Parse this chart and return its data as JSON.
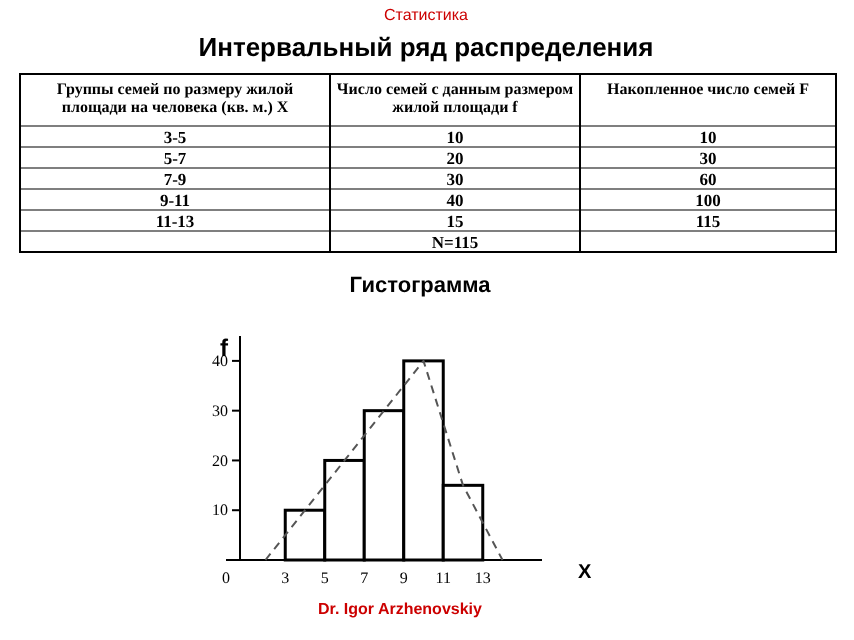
{
  "chart_data": [
    {
      "type": "other",
      "subtitle": "Статистика",
      "title": "Интервальный ряд распределения",
      "categories": [
        "Группы семей по размеру жилой площади на человека (кв. м.)  X",
        "Число семей с данным размером жилой площади  f",
        "Накопленное число семей   F"
      ],
      "annotations": [
        "3-5",
        "10",
        "10",
        "5-7",
        "20",
        "30",
        "7-9",
        "30",
        "60",
        "9-11",
        "40",
        "100",
        "11-13",
        "15",
        "115",
        null,
        "N=115",
        null
      ]
    },
    {
      "type": "histogram",
      "title": "Гистограмма",
      "xlabel": "X",
      "ylabel": "f",
      "bins": [
        3,
        5,
        7,
        9,
        11,
        13
      ],
      "values": [
        10,
        20,
        30,
        40,
        15
      ],
      "color": "#ffffff",
      "series": [
        {
          "type": "line",
          "x": [
            2,
            4,
            6,
            8,
            10,
            12,
            14
          ],
          "values": [
            0,
            10,
            20,
            30,
            40,
            15,
            0
          ],
          "color": "#555555",
          "line_style": "dashed"
        }
      ],
      "xlim": [
        0,
        16
      ],
      "xticks": [
        0,
        3,
        5,
        7,
        9,
        11,
        13
      ],
      "ylim": [
        0,
        45
      ],
      "yticks": [
        10,
        20,
        30,
        40
      ],
      "annotations": [
        "Dr. Igor Arzhenovskiy"
      ]
    }
  ]
}
